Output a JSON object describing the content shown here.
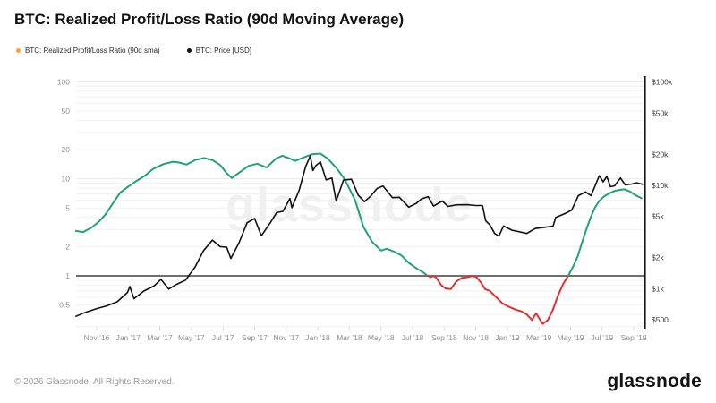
{
  "header": {
    "title": "BTC: Realized Profit/Loss Ratio (90d Moving Average)"
  },
  "legend": [
    {
      "label": "BTC: Realized Profit/Loss Ratio (90d sma)",
      "dot_color": "#f7a329"
    },
    {
      "label": "BTC: Price [USD]",
      "dot_color": "#111111"
    }
  ],
  "watermark": "glassnode",
  "footer": {
    "copyright": "© 2026 Glassnode. All Rights Reserved.",
    "brand": "glassnode"
  },
  "colors": {
    "ratio_above": "#21a179",
    "ratio_below": "#e03131",
    "price": "#111111",
    "baseline": "#6f6f6f",
    "grid_minor": "#f0f0f0",
    "grid_major": "#e8e8e8",
    "axis_text": "#8f8f8f",
    "right_axis_text": "#3c3c3c",
    "right_axis_bar": "#151515",
    "x_tick": "#d8d8d8"
  },
  "chart_data": {
    "type": "line",
    "title": "BTC: Realized Profit/Loss Ratio (90d Moving Average)",
    "grid": "horizontal-log",
    "legend_position": "top-left",
    "baseline_value": 1,
    "x_axis": {
      "labels": [
        "Nov ’16",
        "Jan ’17",
        "Mar ’17",
        "May ’17",
        "Jul ’17",
        "Sep ’17",
        "Nov ’17",
        "Jan ’18",
        "Mar ’18",
        "May ’18",
        "Jul ’18",
        "Sep ’18",
        "Nov ’18",
        "Jan ’19",
        "Mar ’19",
        "May ’19",
        "Jul ’19",
        "Sep ’19"
      ]
    },
    "y_axis_left": {
      "scale": "log",
      "range": [
        0.3,
        115
      ],
      "ticks": [
        100,
        50,
        20,
        10,
        5,
        2,
        1,
        0.5
      ]
    },
    "y_axis_right": {
      "scale": "log",
      "range": [
        430,
        100000
      ],
      "ticks": [
        {
          "value": 100000,
          "label": "$100k"
        },
        {
          "value": 50000,
          "label": "$50k"
        },
        {
          "value": 20000,
          "label": "$20k"
        },
        {
          "value": 10000,
          "label": "$10k"
        },
        {
          "value": 5000,
          "label": "$5k"
        },
        {
          "value": 2000,
          "label": "$2k"
        },
        {
          "value": 1000,
          "label": "$1k"
        },
        {
          "value": 500,
          "label": "$500"
        }
      ]
    },
    "series": [
      {
        "name": "BTC: Realized Profit/Loss Ratio (90d sma)",
        "axis": "left",
        "threshold": 1,
        "points": [
          [
            "2016-09-22",
            2.9
          ],
          [
            "2016-10-05",
            2.82
          ],
          [
            "2016-10-22",
            3.15
          ],
          [
            "2016-11-05",
            3.6
          ],
          [
            "2016-11-18",
            4.3
          ],
          [
            "2016-12-02",
            5.6
          ],
          [
            "2016-12-16",
            7.2
          ],
          [
            "2017-01-02",
            8.4
          ],
          [
            "2017-01-18",
            9.6
          ],
          [
            "2017-02-03",
            10.8
          ],
          [
            "2017-02-18",
            12.6
          ],
          [
            "2017-03-08",
            14.2
          ],
          [
            "2017-03-26",
            15.0
          ],
          [
            "2017-04-08",
            14.7
          ],
          [
            "2017-04-22",
            14.0
          ],
          [
            "2017-05-08",
            15.6
          ],
          [
            "2017-05-26",
            16.4
          ],
          [
            "2017-06-12",
            15.5
          ],
          [
            "2017-06-26",
            13.9
          ],
          [
            "2017-07-08",
            11.4
          ],
          [
            "2017-07-18",
            10.2
          ],
          [
            "2017-08-02",
            11.6
          ],
          [
            "2017-08-20",
            13.6
          ],
          [
            "2017-09-06",
            14.3
          ],
          [
            "2017-09-24",
            13.1
          ],
          [
            "2017-10-12",
            16.2
          ],
          [
            "2017-10-24",
            17.3
          ],
          [
            "2017-11-08",
            16.2
          ],
          [
            "2017-11-18",
            15.3
          ],
          [
            "2017-12-04",
            16.6
          ],
          [
            "2017-12-20",
            17.9
          ],
          [
            "2018-01-06",
            18.2
          ],
          [
            "2018-01-20",
            16.2
          ],
          [
            "2018-02-06",
            13.0
          ],
          [
            "2018-02-22",
            10.0
          ],
          [
            "2018-03-12",
            6.0
          ],
          [
            "2018-03-28",
            3.2
          ],
          [
            "2018-04-14",
            2.25
          ],
          [
            "2018-05-01",
            1.82
          ],
          [
            "2018-05-12",
            1.9
          ],
          [
            "2018-05-26",
            1.78
          ],
          [
            "2018-06-10",
            1.62
          ],
          [
            "2018-06-24",
            1.36
          ],
          [
            "2018-07-10",
            1.18
          ],
          [
            "2018-07-22",
            1.08
          ],
          [
            "2018-07-30",
            1.0
          ],
          [
            "2018-08-06",
            0.97
          ],
          [
            "2018-08-10",
            1.0
          ],
          [
            "2018-08-16",
            0.96
          ],
          [
            "2018-08-26",
            0.8
          ],
          [
            "2018-09-04",
            0.74
          ],
          [
            "2018-09-14",
            0.73
          ],
          [
            "2018-09-24",
            0.87
          ],
          [
            "2018-10-04",
            0.95
          ],
          [
            "2018-10-16",
            0.97
          ],
          [
            "2018-10-26",
            1.0
          ],
          [
            "2018-11-03",
            0.96
          ],
          [
            "2018-11-11",
            0.85
          ],
          [
            "2018-11-19",
            0.73
          ],
          [
            "2018-11-28",
            0.7
          ],
          [
            "2018-12-10",
            0.6
          ],
          [
            "2018-12-22",
            0.52
          ],
          [
            "2019-01-04",
            0.48
          ],
          [
            "2019-01-16",
            0.45
          ],
          [
            "2019-01-28",
            0.43
          ],
          [
            "2019-02-08",
            0.4
          ],
          [
            "2019-02-18",
            0.35
          ],
          [
            "2019-02-26",
            0.41
          ],
          [
            "2019-03-08",
            0.32
          ],
          [
            "2019-03-18",
            0.35
          ],
          [
            "2019-03-28",
            0.45
          ],
          [
            "2019-04-07",
            0.62
          ],
          [
            "2019-04-17",
            0.82
          ],
          [
            "2019-04-27",
            1.0
          ],
          [
            "2019-05-07",
            1.28
          ],
          [
            "2019-05-15",
            1.6
          ],
          [
            "2019-05-23",
            2.2
          ],
          [
            "2019-06-01",
            3.0
          ],
          [
            "2019-06-10",
            4.1
          ],
          [
            "2019-06-18",
            5.1
          ],
          [
            "2019-06-26",
            5.9
          ],
          [
            "2019-07-05",
            6.6
          ],
          [
            "2019-07-15",
            7.1
          ],
          [
            "2019-07-25",
            7.5
          ],
          [
            "2019-08-05",
            7.7
          ],
          [
            "2019-08-14",
            7.8
          ],
          [
            "2019-08-24",
            7.4
          ],
          [
            "2019-09-04",
            6.8
          ],
          [
            "2019-09-16",
            6.3
          ]
        ]
      },
      {
        "name": "BTC: Price [USD]",
        "axis": "right",
        "points": [
          [
            "2016-09-22",
            540
          ],
          [
            "2016-10-10",
            590
          ],
          [
            "2016-11-01",
            640
          ],
          [
            "2016-11-20",
            680
          ],
          [
            "2016-12-10",
            745
          ],
          [
            "2016-12-30",
            920
          ],
          [
            "2017-01-04",
            1050
          ],
          [
            "2017-01-12",
            800
          ],
          [
            "2017-02-01",
            950
          ],
          [
            "2017-02-20",
            1060
          ],
          [
            "2017-03-03",
            1230
          ],
          [
            "2017-03-18",
            990
          ],
          [
            "2017-04-01",
            1090
          ],
          [
            "2017-04-20",
            1210
          ],
          [
            "2017-05-08",
            1620
          ],
          [
            "2017-05-24",
            2320
          ],
          [
            "2017-06-11",
            2950
          ],
          [
            "2017-06-26",
            2550
          ],
          [
            "2017-07-08",
            2520
          ],
          [
            "2017-07-16",
            1960
          ],
          [
            "2017-08-01",
            2760
          ],
          [
            "2017-08-17",
            4350
          ],
          [
            "2017-09-01",
            4780
          ],
          [
            "2017-09-14",
            3250
          ],
          [
            "2017-10-01",
            4360
          ],
          [
            "2017-10-13",
            5450
          ],
          [
            "2017-10-25",
            5600
          ],
          [
            "2017-11-08",
            7450
          ],
          [
            "2017-11-12",
            6100
          ],
          [
            "2017-11-26",
            9000
          ],
          [
            "2017-12-08",
            15200
          ],
          [
            "2017-12-17",
            19300
          ],
          [
            "2017-12-22",
            13900
          ],
          [
            "2017-12-28",
            15600
          ],
          [
            "2018-01-06",
            16900
          ],
          [
            "2018-01-17",
            11300
          ],
          [
            "2018-01-28",
            11800
          ],
          [
            "2018-02-06",
            7050
          ],
          [
            "2018-02-20",
            11250
          ],
          [
            "2018-03-05",
            11450
          ],
          [
            "2018-03-18",
            8050
          ],
          [
            "2018-03-30",
            6950
          ],
          [
            "2018-04-12",
            7900
          ],
          [
            "2018-04-24",
            9350
          ],
          [
            "2018-05-05",
            9850
          ],
          [
            "2018-05-23",
            7600
          ],
          [
            "2018-06-06",
            7670
          ],
          [
            "2018-06-24",
            6150
          ],
          [
            "2018-07-08",
            6700
          ],
          [
            "2018-07-18",
            7400
          ],
          [
            "2018-07-31",
            7780
          ],
          [
            "2018-08-11",
            6300
          ],
          [
            "2018-08-28",
            7050
          ],
          [
            "2018-09-08",
            6250
          ],
          [
            "2018-09-25",
            6480
          ],
          [
            "2018-10-15",
            6500
          ],
          [
            "2018-11-01",
            6380
          ],
          [
            "2018-11-14",
            6380
          ],
          [
            "2018-11-20",
            4550
          ],
          [
            "2018-11-28",
            4150
          ],
          [
            "2018-12-07",
            3420
          ],
          [
            "2018-12-15",
            3220
          ],
          [
            "2018-12-24",
            4050
          ],
          [
            "2019-01-10",
            3680
          ],
          [
            "2019-01-28",
            3520
          ],
          [
            "2019-02-08",
            3420
          ],
          [
            "2019-02-24",
            3820
          ],
          [
            "2019-03-10",
            3920
          ],
          [
            "2019-03-28",
            4020
          ],
          [
            "2019-04-03",
            4900
          ],
          [
            "2019-04-20",
            5320
          ],
          [
            "2019-05-03",
            5750
          ],
          [
            "2019-05-16",
            7950
          ],
          [
            "2019-05-30",
            8650
          ],
          [
            "2019-06-10",
            7950
          ],
          [
            "2019-06-26",
            12400
          ],
          [
            "2019-07-03",
            10800
          ],
          [
            "2019-07-10",
            12200
          ],
          [
            "2019-07-17",
            9700
          ],
          [
            "2019-07-25",
            9900
          ],
          [
            "2019-08-06",
            11800
          ],
          [
            "2019-08-15",
            10100
          ],
          [
            "2019-08-28",
            10300
          ],
          [
            "2019-09-06",
            10600
          ],
          [
            "2019-09-18",
            10250
          ]
        ]
      }
    ]
  }
}
